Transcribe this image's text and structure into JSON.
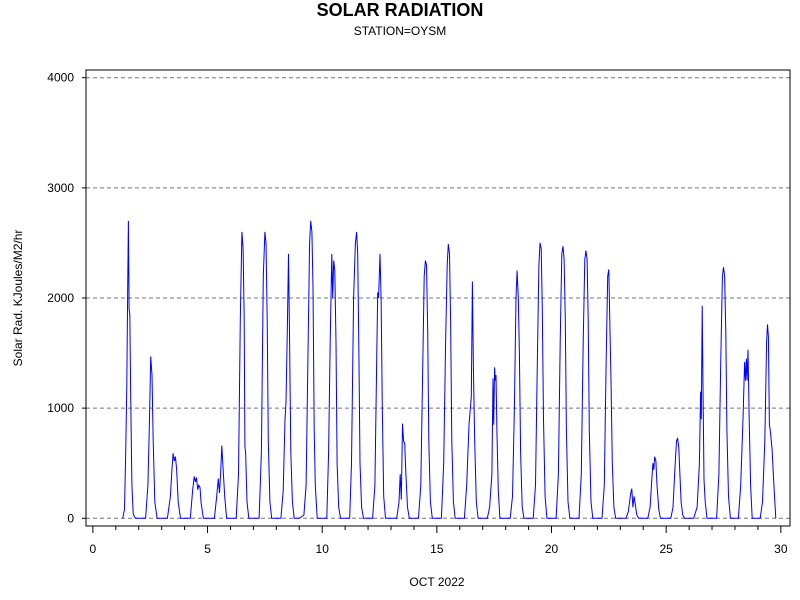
{
  "chart_data": {
    "type": "line",
    "title": "SOLAR RADIATION",
    "subtitle": "STATION=OYSM",
    "xlabel": "OCT 2022",
    "ylabel": "Solar Rad. KJoules/M2/hr",
    "xlim": [
      -0.3,
      30.4
    ],
    "ylim": [
      -70,
      4070
    ],
    "xticks": [
      0,
      5,
      10,
      15,
      20,
      25,
      30
    ],
    "xtick_labels": [
      "0",
      "5",
      "10",
      "15",
      "20",
      "25",
      "30"
    ],
    "yticks": [
      0,
      1000,
      2000,
      3000,
      4000
    ],
    "ytick_labels": [
      "0",
      "1000",
      "2000",
      "3000",
      "4000"
    ],
    "grid": "horizontal-dashed",
    "line_color": "#0000ff",
    "series": [
      {
        "values": [
          [
            1.3,
            0
          ],
          [
            1.38,
            80
          ],
          [
            1.43,
            600
          ],
          [
            1.48,
            1200
          ],
          [
            1.52,
            2100
          ],
          [
            1.55,
            2700
          ],
          [
            1.58,
            1900
          ],
          [
            1.61,
            1850
          ],
          [
            1.65,
            1100
          ],
          [
            1.7,
            300
          ],
          [
            1.76,
            40
          ],
          [
            1.85,
            0
          ],
          [
            2.3,
            0
          ],
          [
            2.4,
            300
          ],
          [
            2.47,
            900
          ],
          [
            2.52,
            1470
          ],
          [
            2.58,
            1300
          ],
          [
            2.63,
            700
          ],
          [
            2.7,
            150
          ],
          [
            2.8,
            0
          ],
          [
            3.25,
            0
          ],
          [
            3.38,
            200
          ],
          [
            3.45,
            450
          ],
          [
            3.5,
            590
          ],
          [
            3.55,
            520
          ],
          [
            3.6,
            560
          ],
          [
            3.65,
            450
          ],
          [
            3.72,
            150
          ],
          [
            3.82,
            0
          ],
          [
            4.25,
            0
          ],
          [
            4.35,
            250
          ],
          [
            4.42,
            380
          ],
          [
            4.47,
            330
          ],
          [
            4.52,
            370
          ],
          [
            4.57,
            260
          ],
          [
            4.62,
            300
          ],
          [
            4.67,
            280
          ],
          [
            4.72,
            140
          ],
          [
            4.82,
            0
          ],
          [
            5.3,
            0
          ],
          [
            5.4,
            200
          ],
          [
            5.47,
            360
          ],
          [
            5.52,
            230
          ],
          [
            5.57,
            400
          ],
          [
            5.62,
            660
          ],
          [
            5.68,
            450
          ],
          [
            5.75,
            200
          ],
          [
            5.83,
            0
          ],
          [
            6.25,
            0
          ],
          [
            6.35,
            400
          ],
          [
            6.43,
            1800
          ],
          [
            6.5,
            2600
          ],
          [
            6.55,
            2450
          ],
          [
            6.6,
            1800
          ],
          [
            6.63,
            650
          ],
          [
            6.66,
            600
          ],
          [
            6.72,
            150
          ],
          [
            6.8,
            0
          ],
          [
            7.25,
            0
          ],
          [
            7.35,
            600
          ],
          [
            7.43,
            2200
          ],
          [
            7.5,
            2600
          ],
          [
            7.55,
            2500
          ],
          [
            7.6,
            1800
          ],
          [
            7.65,
            700
          ],
          [
            7.72,
            150
          ],
          [
            7.8,
            0
          ],
          [
            8.2,
            0
          ],
          [
            8.3,
            250
          ],
          [
            8.38,
            900
          ],
          [
            8.42,
            1050
          ],
          [
            8.48,
            1700
          ],
          [
            8.53,
            2400
          ],
          [
            8.58,
            1600
          ],
          [
            8.63,
            600
          ],
          [
            8.7,
            150
          ],
          [
            8.78,
            0
          ],
          [
            8.8,
            0
          ],
          [
            9.0,
            0
          ],
          [
            9.2,
            30
          ],
          [
            9.3,
            300
          ],
          [
            9.38,
            1500
          ],
          [
            9.45,
            2500
          ],
          [
            9.5,
            2700
          ],
          [
            9.55,
            2600
          ],
          [
            9.6,
            2100
          ],
          [
            9.65,
            800
          ],
          [
            9.7,
            300
          ],
          [
            9.78,
            0
          ],
          [
            10.2,
            0
          ],
          [
            10.28,
            600
          ],
          [
            10.35,
            1600
          ],
          [
            10.42,
            2400
          ],
          [
            10.46,
            2000
          ],
          [
            10.5,
            2340
          ],
          [
            10.55,
            2250
          ],
          [
            10.6,
            1600
          ],
          [
            10.65,
            500
          ],
          [
            10.72,
            100
          ],
          [
            10.8,
            0
          ],
          [
            11.2,
            0
          ],
          [
            11.28,
            500
          ],
          [
            11.37,
            2000
          ],
          [
            11.45,
            2500
          ],
          [
            11.5,
            2600
          ],
          [
            11.55,
            2400
          ],
          [
            11.6,
            1500
          ],
          [
            11.65,
            500
          ],
          [
            11.72,
            100
          ],
          [
            11.8,
            0
          ],
          [
            12.2,
            0
          ],
          [
            12.3,
            300
          ],
          [
            12.38,
            1500
          ],
          [
            12.42,
            2050
          ],
          [
            12.46,
            2000
          ],
          [
            12.52,
            2400
          ],
          [
            12.57,
            2000
          ],
          [
            12.62,
            1000
          ],
          [
            12.68,
            200
          ],
          [
            12.76,
            0
          ],
          [
            13.25,
            0
          ],
          [
            13.35,
            150
          ],
          [
            13.4,
            400
          ],
          [
            13.45,
            170
          ],
          [
            13.5,
            860
          ],
          [
            13.55,
            700
          ],
          [
            13.6,
            680
          ],
          [
            13.65,
            400
          ],
          [
            13.72,
            100
          ],
          [
            13.8,
            0
          ],
          [
            14.2,
            0
          ],
          [
            14.3,
            300
          ],
          [
            14.38,
            1300
          ],
          [
            14.45,
            2200
          ],
          [
            14.5,
            2340
          ],
          [
            14.55,
            2300
          ],
          [
            14.6,
            1700
          ],
          [
            14.65,
            700
          ],
          [
            14.72,
            150
          ],
          [
            14.8,
            0
          ],
          [
            15.2,
            0
          ],
          [
            15.3,
            500
          ],
          [
            15.38,
            1600
          ],
          [
            15.45,
            2300
          ],
          [
            15.5,
            2490
          ],
          [
            15.55,
            2400
          ],
          [
            15.6,
            1800
          ],
          [
            15.65,
            700
          ],
          [
            15.72,
            150
          ],
          [
            15.8,
            0
          ],
          [
            16.2,
            0
          ],
          [
            16.3,
            300
          ],
          [
            16.4,
            850
          ],
          [
            16.5,
            1100
          ],
          [
            16.55,
            2150
          ],
          [
            16.6,
            1300
          ],
          [
            16.65,
            700
          ],
          [
            16.72,
            150
          ],
          [
            16.8,
            0
          ],
          [
            17.2,
            0
          ],
          [
            17.3,
            100
          ],
          [
            17.4,
            400
          ],
          [
            17.45,
            1270
          ],
          [
            17.48,
            850
          ],
          [
            17.52,
            1370
          ],
          [
            17.55,
            1250
          ],
          [
            17.58,
            1300
          ],
          [
            17.62,
            800
          ],
          [
            17.68,
            250
          ],
          [
            17.75,
            0
          ],
          [
            18.2,
            0
          ],
          [
            18.3,
            200
          ],
          [
            18.38,
            1000
          ],
          [
            18.45,
            2000
          ],
          [
            18.5,
            2250
          ],
          [
            18.55,
            2000
          ],
          [
            18.6,
            1500
          ],
          [
            18.65,
            600
          ],
          [
            18.72,
            100
          ],
          [
            18.8,
            0
          ],
          [
            19.2,
            0
          ],
          [
            19.3,
            300
          ],
          [
            19.38,
            1400
          ],
          [
            19.45,
            2300
          ],
          [
            19.5,
            2500
          ],
          [
            19.55,
            2450
          ],
          [
            19.6,
            1900
          ],
          [
            19.65,
            900
          ],
          [
            19.72,
            200
          ],
          [
            19.8,
            0
          ],
          [
            20.2,
            0
          ],
          [
            20.3,
            400
          ],
          [
            20.38,
            1600
          ],
          [
            20.45,
            2400
          ],
          [
            20.5,
            2470
          ],
          [
            20.55,
            2350
          ],
          [
            20.6,
            1800
          ],
          [
            20.65,
            800
          ],
          [
            20.72,
            150
          ],
          [
            20.8,
            0
          ],
          [
            21.2,
            0
          ],
          [
            21.3,
            400
          ],
          [
            21.38,
            1600
          ],
          [
            21.45,
            2350
          ],
          [
            21.5,
            2430
          ],
          [
            21.55,
            2350
          ],
          [
            21.6,
            1800
          ],
          [
            21.65,
            800
          ],
          [
            21.72,
            150
          ],
          [
            21.8,
            0
          ],
          [
            22.2,
            0
          ],
          [
            22.3,
            300
          ],
          [
            22.38,
            1400
          ],
          [
            22.45,
            2200
          ],
          [
            22.5,
            2260
          ],
          [
            22.55,
            1700
          ],
          [
            22.6,
            1200
          ],
          [
            22.65,
            500
          ],
          [
            22.72,
            100
          ],
          [
            22.8,
            0
          ],
          [
            23.25,
            0
          ],
          [
            23.35,
            60
          ],
          [
            23.45,
            220
          ],
          [
            23.5,
            270
          ],
          [
            23.55,
            100
          ],
          [
            23.6,
            200
          ],
          [
            23.65,
            130
          ],
          [
            23.72,
            30
          ],
          [
            23.8,
            0
          ],
          [
            24.2,
            0
          ],
          [
            24.3,
            100
          ],
          [
            24.38,
            380
          ],
          [
            24.42,
            500
          ],
          [
            24.46,
            440
          ],
          [
            24.5,
            560
          ],
          [
            24.55,
            520
          ],
          [
            24.6,
            300
          ],
          [
            24.68,
            80
          ],
          [
            24.75,
            0
          ],
          [
            25.2,
            0
          ],
          [
            25.3,
            100
          ],
          [
            25.38,
            450
          ],
          [
            25.45,
            700
          ],
          [
            25.5,
            730
          ],
          [
            25.55,
            640
          ],
          [
            25.6,
            400
          ],
          [
            25.65,
            150
          ],
          [
            25.72,
            30
          ],
          [
            25.8,
            0
          ],
          [
            26.2,
            0
          ],
          [
            26.35,
            100
          ],
          [
            26.45,
            500
          ],
          [
            26.5,
            1150
          ],
          [
            26.53,
            900
          ],
          [
            26.57,
            1930
          ],
          [
            26.61,
            1100
          ],
          [
            26.65,
            350
          ],
          [
            26.7,
            150
          ],
          [
            26.78,
            0
          ],
          [
            27.2,
            0
          ],
          [
            27.3,
            400
          ],
          [
            27.38,
            1400
          ],
          [
            27.45,
            2200
          ],
          [
            27.5,
            2280
          ],
          [
            27.55,
            2200
          ],
          [
            27.6,
            1700
          ],
          [
            27.65,
            800
          ],
          [
            27.72,
            200
          ],
          [
            27.8,
            0
          ],
          [
            28.15,
            0
          ],
          [
            28.25,
            300
          ],
          [
            28.35,
            900
          ],
          [
            28.42,
            1420
          ],
          [
            28.46,
            1250
          ],
          [
            28.5,
            1450
          ],
          [
            28.53,
            1250
          ],
          [
            28.57,
            1530
          ],
          [
            28.62,
            900
          ],
          [
            28.68,
            300
          ],
          [
            28.75,
            0
          ],
          [
            29.1,
            0
          ],
          [
            29.2,
            150
          ],
          [
            29.3,
            700
          ],
          [
            29.38,
            1600
          ],
          [
            29.42,
            1760
          ],
          [
            29.46,
            1650
          ],
          [
            29.5,
            850
          ],
          [
            29.55,
            780
          ],
          [
            29.62,
            620
          ],
          [
            29.7,
            300
          ],
          [
            29.78,
            0
          ]
        ]
      }
    ]
  }
}
